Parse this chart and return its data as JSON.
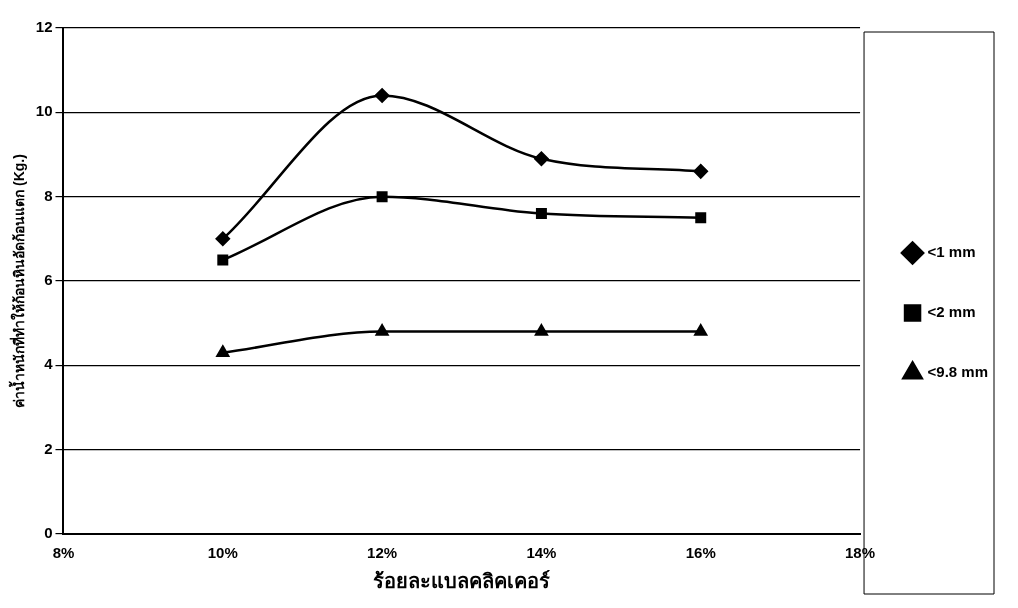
{
  "chart_data": {
    "type": "line",
    "xlabel": "ร้อยละแบลคลิคเคอร์",
    "ylabel": "ค่าน้ำหนักที่ทำให้ก้อนหินอัดก้อนแตก (Kg.)",
    "x": [
      10,
      12,
      14,
      16
    ],
    "xlim": [
      8,
      18
    ],
    "xticks": [
      {
        "value": 8,
        "label": "8%"
      },
      {
        "value": 10,
        "label": "10%"
      },
      {
        "value": 12,
        "label": "12%"
      },
      {
        "value": 14,
        "label": "14%"
      },
      {
        "value": 16,
        "label": "16%"
      },
      {
        "value": 18,
        "label": "18%"
      }
    ],
    "ylim": [
      0,
      12
    ],
    "yticks": [
      0,
      2,
      4,
      6,
      8,
      10,
      12
    ],
    "grid": "y",
    "legend": "right",
    "line_style": "solid",
    "series": [
      {
        "name": "<1 mm",
        "color": "#000000",
        "marker": "diamond",
        "values": [
          7.0,
          10.4,
          8.9,
          8.6
        ]
      },
      {
        "name": "<2 mm",
        "color": "#000000",
        "marker": "square",
        "values": [
          6.5,
          8.0,
          7.6,
          7.5
        ]
      },
      {
        "name": "<9.8 mm",
        "color": "#000000",
        "marker": "triangle",
        "values": [
          4.3,
          4.8,
          4.8,
          4.8
        ]
      }
    ]
  }
}
